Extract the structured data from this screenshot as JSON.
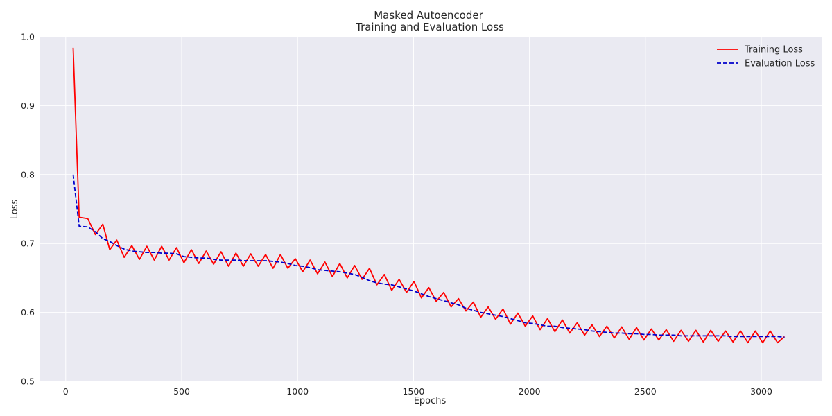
{
  "chart_data": {
    "type": "line",
    "title_line1": "Masked Autoencoder",
    "title_line2": "Training and Evaluation Loss",
    "xlabel": "Epochs",
    "ylabel": "Loss",
    "xlim": [
      -110,
      3260
    ],
    "ylim": [
      0.5,
      1.0
    ],
    "xticks": [
      0,
      500,
      1000,
      1500,
      2000,
      2500,
      3000
    ],
    "yticks": [
      0.5,
      0.6,
      0.7,
      0.8,
      0.9,
      1.0
    ],
    "grid": true,
    "legend_position": "top-right",
    "series": [
      {
        "name": "Training Loss",
        "color": "#ff0000",
        "style": "solid",
        "x": [
          32,
          58,
          95,
          128,
          160,
          190,
          220,
          252,
          285,
          318,
          350,
          382,
          414,
          446,
          478,
          510,
          542,
          574,
          606,
          638,
          670,
          702,
          734,
          766,
          798,
          830,
          862,
          894,
          926,
          958,
          990,
          1022,
          1054,
          1086,
          1118,
          1150,
          1182,
          1214,
          1246,
          1278,
          1310,
          1342,
          1374,
          1406,
          1438,
          1470,
          1502,
          1534,
          1566,
          1598,
          1630,
          1662,
          1694,
          1726,
          1758,
          1790,
          1822,
          1854,
          1886,
          1918,
          1950,
          1982,
          2014,
          2046,
          2078,
          2110,
          2142,
          2174,
          2206,
          2238,
          2270,
          2302,
          2334,
          2366,
          2398,
          2430,
          2462,
          2494,
          2526,
          2558,
          2590,
          2622,
          2654,
          2686,
          2718,
          2750,
          2782,
          2814,
          2846,
          2878,
          2910,
          2942,
          2974,
          3006,
          3038,
          3070,
          3100
        ],
        "values": [
          0.984,
          0.738,
          0.736,
          0.713,
          0.728,
          0.691,
          0.705,
          0.68,
          0.697,
          0.677,
          0.696,
          0.676,
          0.696,
          0.676,
          0.694,
          0.672,
          0.691,
          0.671,
          0.689,
          0.67,
          0.688,
          0.667,
          0.686,
          0.667,
          0.685,
          0.667,
          0.684,
          0.664,
          0.684,
          0.664,
          0.678,
          0.659,
          0.676,
          0.656,
          0.673,
          0.652,
          0.671,
          0.65,
          0.668,
          0.648,
          0.664,
          0.64,
          0.655,
          0.632,
          0.648,
          0.629,
          0.645,
          0.621,
          0.636,
          0.616,
          0.629,
          0.608,
          0.62,
          0.602,
          0.615,
          0.593,
          0.608,
          0.59,
          0.605,
          0.583,
          0.599,
          0.58,
          0.595,
          0.575,
          0.591,
          0.572,
          0.589,
          0.57,
          0.585,
          0.567,
          0.582,
          0.565,
          0.58,
          0.563,
          0.579,
          0.561,
          0.578,
          0.56,
          0.576,
          0.56,
          0.575,
          0.558,
          0.574,
          0.558,
          0.574,
          0.557,
          0.574,
          0.558,
          0.573,
          0.557,
          0.573,
          0.556,
          0.573,
          0.556,
          0.573,
          0.556,
          0.565
        ]
      },
      {
        "name": "Evaluation Loss",
        "color": "#0000cc",
        "style": "dashed",
        "x": [
          32,
          58,
          95,
          128,
          160,
          190,
          220,
          252,
          285,
          318,
          350,
          382,
          414,
          446,
          478,
          510,
          542,
          574,
          606,
          638,
          670,
          702,
          734,
          766,
          798,
          830,
          862,
          894,
          926,
          958,
          990,
          1022,
          1054,
          1086,
          1118,
          1150,
          1182,
          1214,
          1246,
          1278,
          1310,
          1342,
          1374,
          1406,
          1438,
          1470,
          1502,
          1534,
          1566,
          1598,
          1630,
          1662,
          1694,
          1726,
          1758,
          1790,
          1822,
          1854,
          1886,
          1918,
          1950,
          1982,
          2014,
          2046,
          2078,
          2110,
          2142,
          2174,
          2206,
          2238,
          2270,
          2302,
          2334,
          2366,
          2398,
          2430,
          2462,
          2494,
          2526,
          2558,
          2590,
          2622,
          2654,
          2686,
          2718,
          2750,
          2782,
          2814,
          2846,
          2878,
          2910,
          2942,
          2974,
          3006,
          3038,
          3070,
          3100
        ],
        "values": [
          0.8,
          0.725,
          0.724,
          0.717,
          0.707,
          0.703,
          0.697,
          0.692,
          0.689,
          0.688,
          0.687,
          0.687,
          0.686,
          0.686,
          0.685,
          0.681,
          0.68,
          0.679,
          0.679,
          0.677,
          0.676,
          0.676,
          0.676,
          0.675,
          0.675,
          0.675,
          0.675,
          0.674,
          0.673,
          0.671,
          0.668,
          0.667,
          0.665,
          0.662,
          0.661,
          0.66,
          0.659,
          0.657,
          0.655,
          0.651,
          0.646,
          0.643,
          0.641,
          0.64,
          0.637,
          0.634,
          0.631,
          0.627,
          0.623,
          0.62,
          0.617,
          0.614,
          0.611,
          0.606,
          0.603,
          0.6,
          0.598,
          0.596,
          0.594,
          0.591,
          0.588,
          0.585,
          0.584,
          0.582,
          0.58,
          0.58,
          0.578,
          0.577,
          0.576,
          0.575,
          0.573,
          0.572,
          0.571,
          0.57,
          0.57,
          0.569,
          0.569,
          0.568,
          0.568,
          0.567,
          0.567,
          0.567,
          0.566,
          0.566,
          0.566,
          0.566,
          0.566,
          0.566,
          0.566,
          0.565,
          0.565,
          0.565,
          0.565,
          0.565,
          0.565,
          0.565,
          0.564
        ]
      }
    ]
  }
}
